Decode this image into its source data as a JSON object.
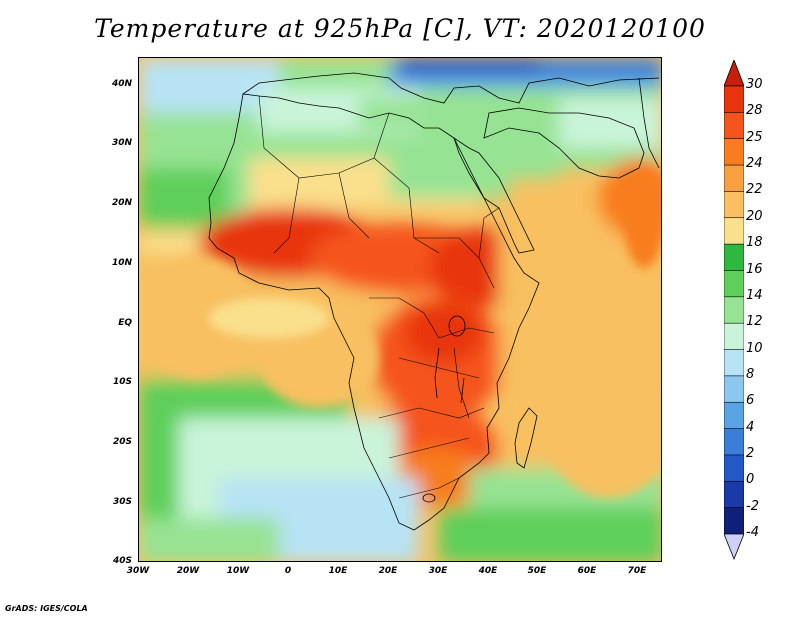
{
  "title": "Temperature at 925hPa [C], VT: 2020120100",
  "credit": "GrADS: IGES/COLA",
  "map": {
    "lat_labels": [
      "40N",
      "30N",
      "20N",
      "10N",
      "EQ",
      "10S",
      "20S",
      "30S",
      "40S"
    ],
    "lon_labels": [
      "30W",
      "20W",
      "10W",
      "0",
      "10E",
      "20E",
      "30E",
      "40E",
      "50E",
      "60E",
      "70E"
    ],
    "lon_range": [
      -30,
      75
    ],
    "lat_range": [
      -40,
      45
    ]
  },
  "colorbar": {
    "labels": [
      "30",
      "28",
      "25",
      "24",
      "22",
      "20",
      "18",
      "16",
      "14",
      "12",
      "10",
      "8",
      "6",
      "4",
      "2",
      "0",
      "-2",
      "-4"
    ],
    "colors": {
      "above_30": "#c81e0a",
      "28_30": "#e8350f",
      "25_28": "#f5551a",
      "24_25": "#f87d1e",
      "22_24": "#f7a040",
      "20_22": "#f8c061",
      "18_20": "#fae08c",
      "16_18": "#2fb83f",
      "14_16": "#5dcf5a",
      "12_14": "#96e393",
      "10_12": "#c9f4d9",
      "8_10": "#b7e3f5",
      "6_8": "#8cc7f0",
      "4_6": "#5aa4e6",
      "2_4": "#3b7ed9",
      "0_2": "#2358c8",
      "m2_0": "#1a3aa8",
      "m4_m2": "#0f1f7a",
      "below_m4": "#cfd0f5"
    }
  }
}
